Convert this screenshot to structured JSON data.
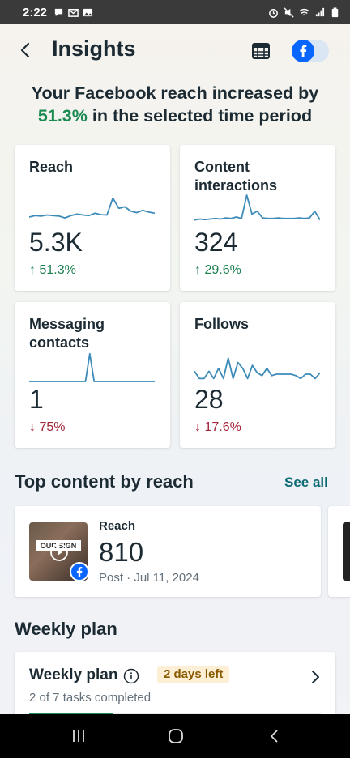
{
  "status_bar": {
    "time": "2:22",
    "left_icons": [
      "chat-icon",
      "gmail-icon",
      "gallery-icon"
    ],
    "right_icons": [
      "alarm-icon",
      "mute-icon",
      "wifi-icon",
      "signal-icon",
      "battery-icon"
    ]
  },
  "header": {
    "title": "Insights",
    "fb_toggle_on": true
  },
  "headline": {
    "line1": "Your Facebook reach increased by",
    "pct": "51.3%",
    "line2_rest": " in the selected time period"
  },
  "metrics": [
    {
      "label": "Reach",
      "value": "5.3K",
      "change": "51.3%",
      "direction": "up",
      "arrow": "↑",
      "spark": [
        0.25,
        0.3,
        0.28,
        0.32,
        0.3,
        0.28,
        0.22,
        0.3,
        0.35,
        0.32,
        0.3,
        0.38,
        0.33,
        0.32,
        0.9,
        0.55,
        0.6,
        0.45,
        0.4,
        0.48,
        0.42,
        0.38
      ]
    },
    {
      "label": "Content interactions",
      "value": "324",
      "change": "29.6%",
      "direction": "up",
      "arrow": "↑",
      "spark": [
        0.15,
        0.18,
        0.16,
        0.18,
        0.2,
        0.18,
        0.22,
        0.2,
        0.25,
        0.2,
        1.0,
        0.35,
        0.45,
        0.22,
        0.2,
        0.2,
        0.22,
        0.2,
        0.2,
        0.2,
        0.22,
        0.2,
        0.22,
        0.45,
        0.15
      ]
    },
    {
      "label": "Messaging contacts",
      "value": "1",
      "change": "75%",
      "direction": "down",
      "arrow": "↓",
      "spark": [
        0,
        0,
        0,
        0,
        0,
        0,
        0,
        0,
        0,
        0,
        0,
        0,
        0,
        0,
        0.95,
        0,
        0,
        0,
        0,
        0,
        0,
        0,
        0,
        0,
        0,
        0,
        0,
        0,
        0,
        0
      ]
    },
    {
      "label": "Follows",
      "value": "28",
      "change": "17.6%",
      "direction": "down",
      "arrow": "↓",
      "spark": [
        0.35,
        0.1,
        0.1,
        0.35,
        0.1,
        0.45,
        0.1,
        0.8,
        0.1,
        0.65,
        0.45,
        0.1,
        0.55,
        0.3,
        0.2,
        0.45,
        0.2,
        0.25,
        0.25,
        0.25,
        0.25,
        0.2,
        0.1,
        0.25,
        0.25,
        0.1,
        0.3
      ]
    }
  ],
  "top_content": {
    "title": "Top content by reach",
    "see_all": "See all",
    "post": {
      "thumb_text": "OUR SIGN",
      "metric_label": "Reach",
      "metric_value": "810",
      "meta": "Post · Jul 11, 2024"
    }
  },
  "weekly_plan": {
    "section_title": "Weekly plan",
    "card_title": "Weekly plan",
    "badge": "2 days left",
    "progress_text": "2 of 7 tasks completed",
    "completed": 2,
    "total": 7
  },
  "colors": {
    "accent_green": "#1a8a52",
    "down_red": "#a3243a",
    "fb_blue": "#0866ff",
    "spark_blue": "#3d8bb8",
    "link_teal": "#0b6b73"
  }
}
